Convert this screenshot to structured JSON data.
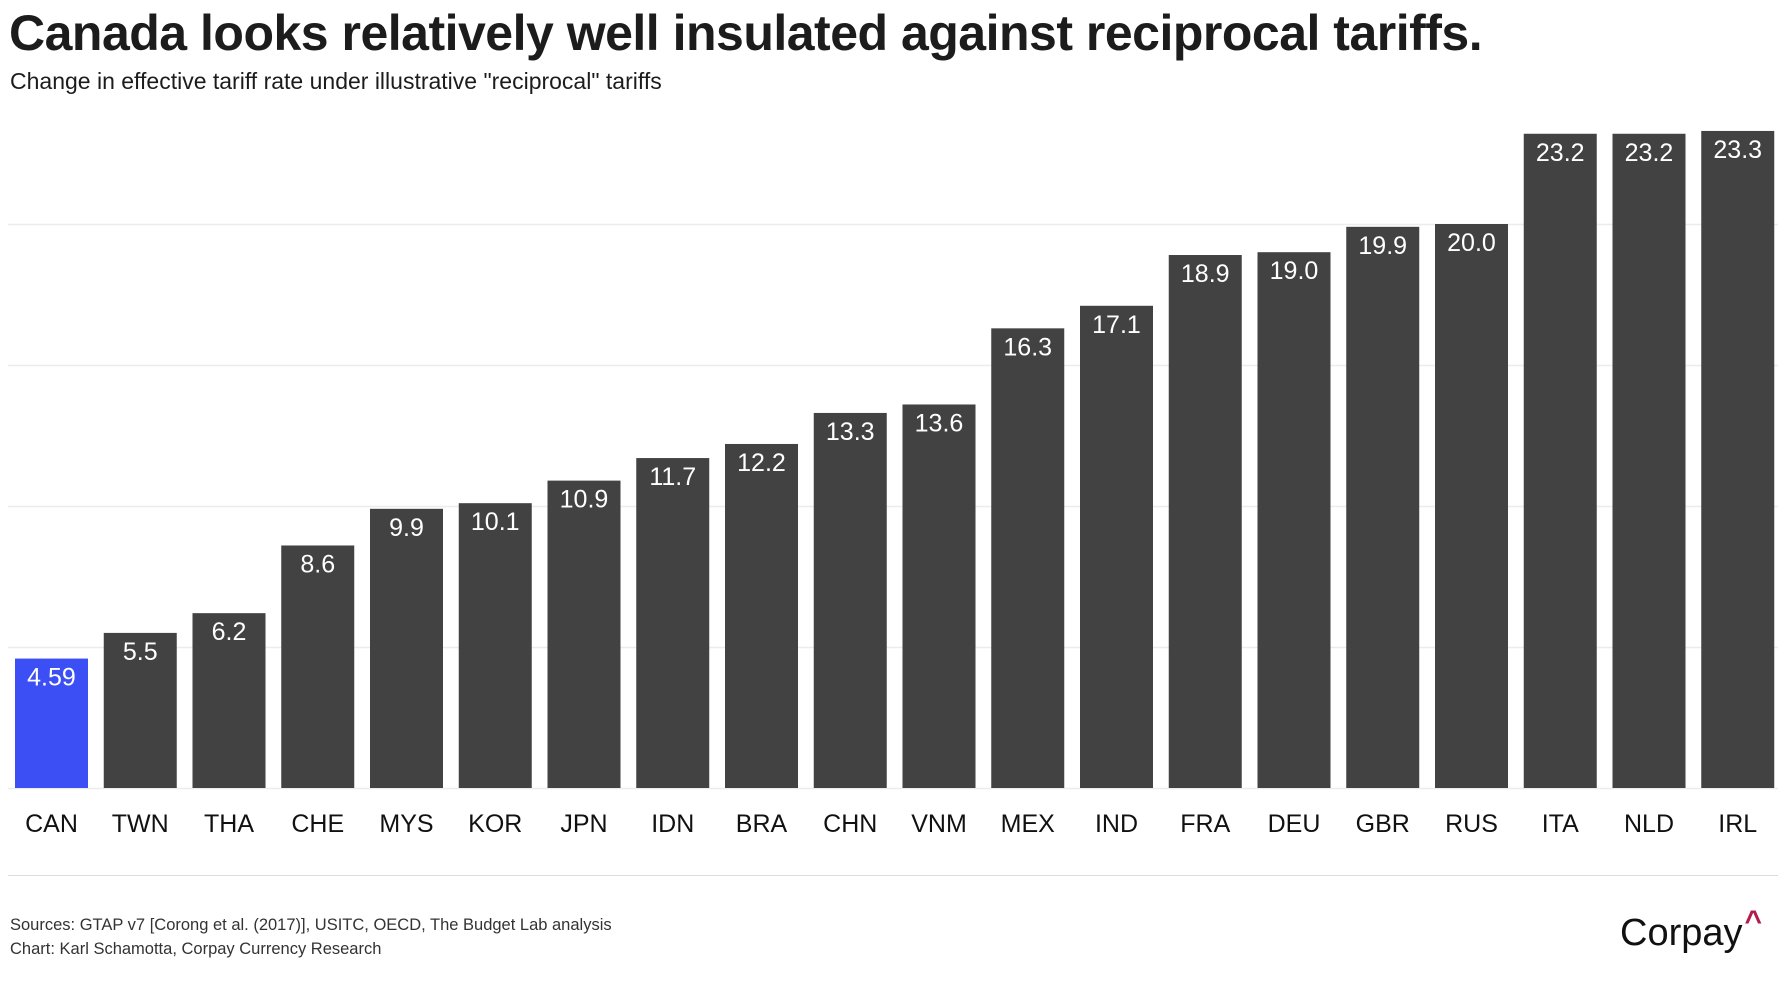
{
  "header": {
    "title": "Canada looks relatively well insulated against reciprocal tariffs.",
    "subtitle": "Change in effective tariff rate under illustrative \"reciprocal\" tariffs"
  },
  "footer": {
    "sources": "Sources: GTAP v7 [Corong et al. (2017)], USITC, OECD, The Budget Lab analysis",
    "credit": "Chart: Karl Schamotta, Corpay Currency Research",
    "logo_text": "Corpay",
    "logo_mark": "^"
  },
  "colors": {
    "highlight": "#3b4ff5",
    "bar": "#424242",
    "grid": "#ececec",
    "logo_accent": "#b01f4a"
  },
  "chart_data": {
    "type": "bar",
    "title": "Canada looks relatively well insulated against reciprocal tariffs.",
    "subtitle": "Change in effective tariff rate under illustrative \"reciprocal\" tariffs",
    "xlabel": "",
    "ylabel": "",
    "ylim": [
      0,
      23.5
    ],
    "grid": true,
    "gridlines_at": [
      5,
      10,
      15,
      20
    ],
    "y_tick_labels_shown": false,
    "legend": "none",
    "categories": [
      "CAN",
      "TWN",
      "THA",
      "CHE",
      "MYS",
      "KOR",
      "JPN",
      "IDN",
      "BRA",
      "CHN",
      "VNM",
      "MEX",
      "IND",
      "FRA",
      "DEU",
      "GBR",
      "RUS",
      "ITA",
      "NLD",
      "IRL"
    ],
    "values": [
      4.59,
      5.5,
      6.2,
      8.6,
      9.9,
      10.1,
      10.9,
      11.7,
      12.2,
      13.3,
      13.6,
      16.3,
      17.1,
      18.9,
      19.0,
      19.9,
      20.0,
      23.2,
      23.2,
      23.3
    ],
    "labels": [
      "4.59",
      "5.5",
      "6.2",
      "8.6",
      "9.9",
      "10.1",
      "10.9",
      "11.7",
      "12.2",
      "13.3",
      "13.6",
      "16.3",
      "17.1",
      "18.9",
      "19.0",
      "19.9",
      "20.0",
      "23.2",
      "23.2",
      "23.3"
    ],
    "highlighted_category": "CAN"
  }
}
